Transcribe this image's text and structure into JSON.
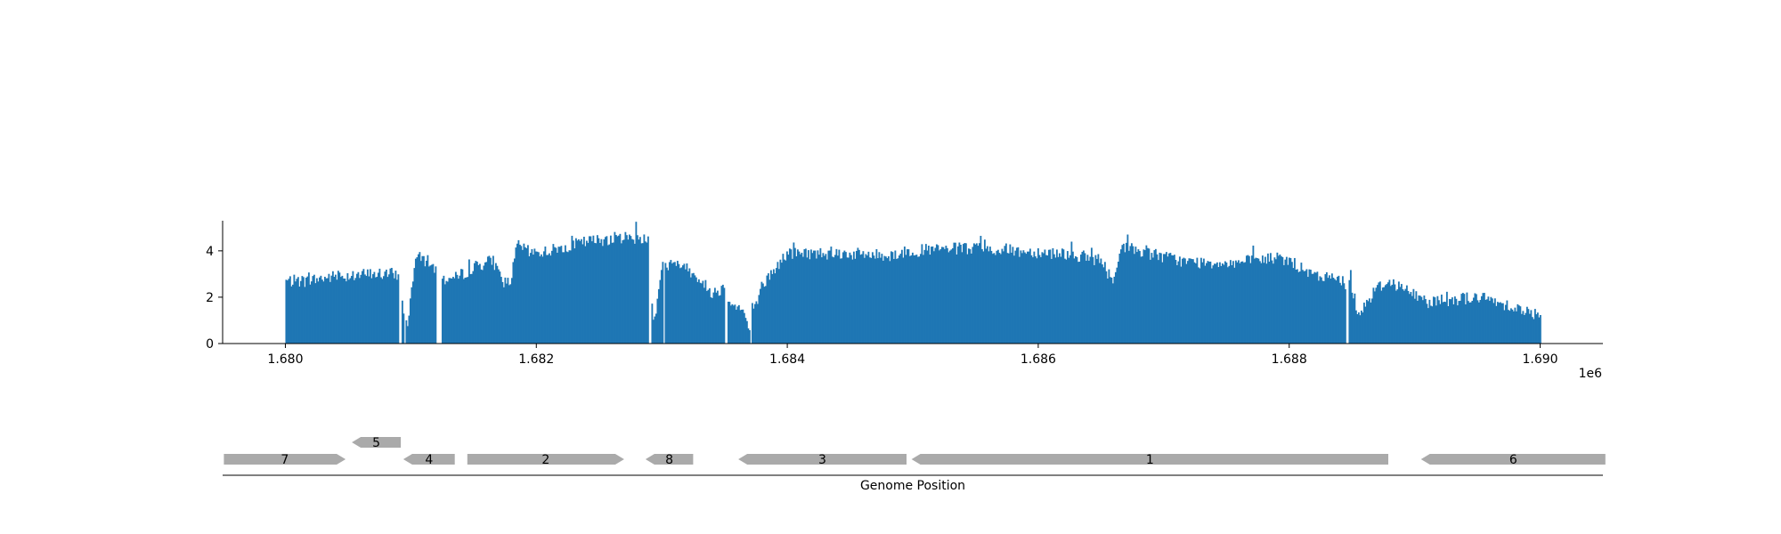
{
  "chart_data": [
    {
      "type": "area",
      "title": "",
      "xlabel": "",
      "ylabel": "",
      "x_offset_label": "1e6",
      "xlim": [
        1.6795,
        1.6905
      ],
      "ylim": [
        0,
        5.3
      ],
      "grid": false,
      "color": "#1f77b4",
      "x_ticks": [
        1.68,
        1.682,
        1.684,
        1.686,
        1.688,
        1.69
      ],
      "x_tick_labels": [
        "1.680",
        "1.682",
        "1.684",
        "1.686",
        "1.688",
        "1.690"
      ],
      "y_ticks": [
        0,
        2,
        4
      ],
      "y_tick_labels": [
        "0",
        "2",
        "4"
      ],
      "x_range": [
        1.68,
        1.69
      ],
      "coverage_profile": {
        "x": [
          1.68,
          1.68015,
          1.6804,
          1.6807,
          1.6809,
          1.68093,
          1.68098,
          1.68103,
          1.68108,
          1.68115,
          1.68125,
          1.68135,
          1.6815,
          1.68165,
          1.68175,
          1.6818,
          1.68185,
          1.68188,
          1.68195,
          1.6821,
          1.6824,
          1.6827,
          1.6829,
          1.68293,
          1.683,
          1.6832,
          1.6834,
          1.6835,
          1.68355,
          1.68365,
          1.6837,
          1.68375,
          1.6838,
          1.684,
          1.6844,
          1.6848,
          1.685,
          1.6854,
          1.6858,
          1.6862,
          1.6865,
          1.6866,
          1.68665,
          1.6868,
          1.6872,
          1.6876,
          1.6879,
          1.688,
          1.6881,
          1.6882,
          1.6884,
          1.6885,
          1.68855,
          1.6887,
          1.6888,
          1.6891,
          1.6895,
          1.6898,
          1.69
        ],
        "y": [
          2.7,
          2.7,
          2.9,
          3.0,
          3.0,
          1.7,
          0.8,
          3.6,
          3.7,
          3.5,
          2.8,
          2.8,
          3.3,
          3.6,
          2.6,
          2.8,
          4.3,
          4.2,
          3.9,
          4.0,
          4.4,
          4.6,
          4.5,
          0.6,
          3.4,
          3.3,
          2.2,
          2.4,
          1.8,
          1.4,
          0.5,
          1.8,
          2.5,
          3.9,
          3.9,
          3.8,
          4.0,
          4.1,
          4.0,
          3.9,
          3.6,
          2.6,
          4.2,
          4.0,
          3.5,
          3.5,
          3.7,
          3.6,
          3.2,
          2.9,
          2.8,
          2.4,
          1.3,
          2.4,
          2.7,
          1.8,
          2.0,
          1.6,
          1.1
        ]
      },
      "dropouts": [
        [
          1.6809,
          1.68093
        ],
        [
          1.68095,
          1.68096
        ],
        [
          1.6812,
          1.68125
        ],
        [
          1.6829,
          1.68292
        ],
        [
          1.68301,
          1.68302
        ],
        [
          1.6835,
          1.68352
        ],
        [
          1.6837,
          1.68372
        ],
        [
          1.68845,
          1.68847
        ]
      ]
    },
    {
      "type": "gene-map",
      "xlabel": "Genome Position",
      "color": "#aaaaaa",
      "genes": [
        {
          "label": "7",
          "start": 1.67951,
          "end": 1.68048,
          "strand": "+",
          "lane": 0
        },
        {
          "label": "5",
          "start": 1.68053,
          "end": 1.68092,
          "strand": "-",
          "lane": 1
        },
        {
          "label": "4",
          "start": 1.68094,
          "end": 1.68135,
          "strand": "-",
          "lane": 0
        },
        {
          "label": "2",
          "start": 1.68145,
          "end": 1.6827,
          "strand": "+",
          "lane": 0
        },
        {
          "label": "8",
          "start": 1.68287,
          "end": 1.68325,
          "strand": "-",
          "lane": 0
        },
        {
          "label": "3",
          "start": 1.68361,
          "end": 1.68495,
          "strand": "-",
          "lane": 0
        },
        {
          "label": "1",
          "start": 1.68499,
          "end": 1.68879,
          "strand": "-",
          "lane": 0
        },
        {
          "label": "6",
          "start": 1.68905,
          "end": 1.69052,
          "strand": "-",
          "lane": 0
        }
      ]
    }
  ]
}
